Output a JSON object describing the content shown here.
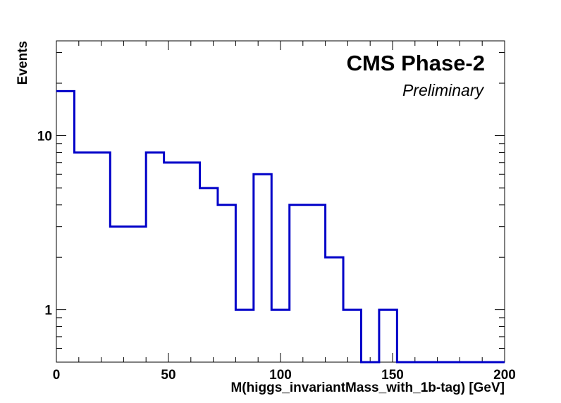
{
  "chart_data": {
    "type": "histogram",
    "title": "",
    "xlabel": "M(higgs_invariantMass_with_1b-tag) [GeV]",
    "ylabel": "Events",
    "xlim": [
      0,
      200
    ],
    "ylim": [
      0.5,
      35
    ],
    "yscale": "log",
    "grid": false,
    "x_ticks": [
      "0",
      "50",
      "100",
      "150",
      "200"
    ],
    "y_ticks": [
      "1",
      "10"
    ],
    "bin_width": 8,
    "bin_edges": [
      0,
      8,
      16,
      24,
      32,
      40,
      48,
      56,
      64,
      72,
      80,
      88,
      96,
      104,
      112,
      120,
      128,
      136,
      144,
      152,
      160,
      168,
      176,
      184,
      192,
      200
    ],
    "values": [
      18,
      8,
      8,
      3,
      3,
      8,
      7,
      7,
      5,
      4,
      1,
      6,
      1,
      4,
      4,
      2,
      1,
      0,
      1,
      0,
      0,
      0,
      0,
      0,
      0
    ],
    "line_color": "#0000c8",
    "annotations": {
      "experiment": "CMS Phase-2",
      "status": "Preliminary"
    }
  }
}
